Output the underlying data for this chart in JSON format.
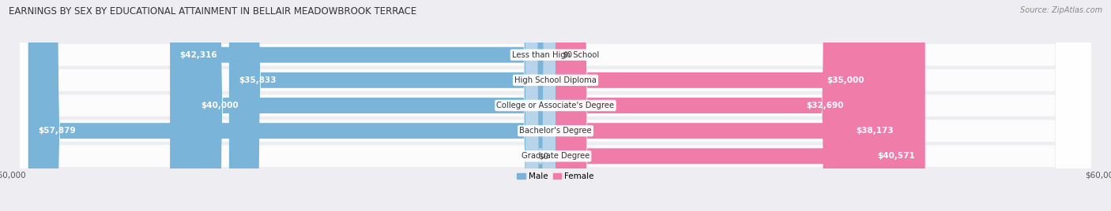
{
  "title": "EARNINGS BY SEX BY EDUCATIONAL ATTAINMENT IN BELLAIR MEADOWBROOK TERRACE",
  "source": "Source: ZipAtlas.com",
  "categories": [
    "Less than High School",
    "High School Diploma",
    "College or Associate's Degree",
    "Bachelor's Degree",
    "Graduate Degree"
  ],
  "male_values": [
    42316,
    35833,
    40000,
    57879,
    0
  ],
  "female_values": [
    0,
    35000,
    32690,
    38173,
    40571
  ],
  "male_labels": [
    "$42,316",
    "$35,833",
    "$40,000",
    "$57,879",
    "$0"
  ],
  "female_labels": [
    "$0",
    "$35,000",
    "$32,690",
    "$38,173",
    "$40,571"
  ],
  "male_color": "#7ab4d8",
  "female_color": "#f07caa",
  "male_color_light": "#b8d4ea",
  "female_color_light": "#f5b8ce",
  "axis_max": 60000,
  "legend_male": "Male",
  "legend_female": "Female",
  "bg_color": "#eeeef2",
  "row_bg_color": "#e2e2ea",
  "title_fontsize": 8.5,
  "label_fontsize": 7.5,
  "category_fontsize": 7.2,
  "bar_height": 0.62
}
